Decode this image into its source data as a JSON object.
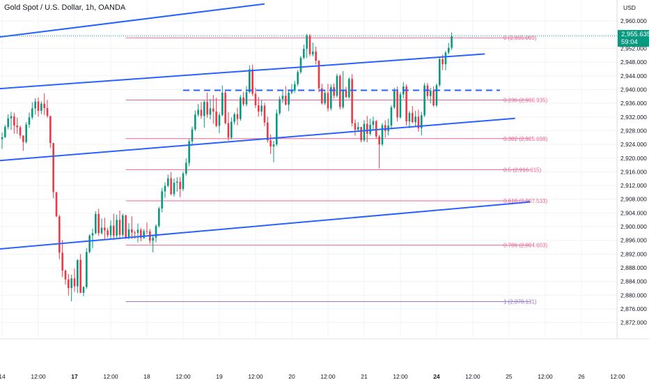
{
  "header": {
    "title": "Gold Spot / U.S. Dollar, 1h, OANDA"
  },
  "axis": {
    "currency": "USD"
  },
  "last_price": {
    "price": "2,955.635",
    "countdown": "59:04",
    "value": 2955.635,
    "color": "#089981"
  },
  "colors": {
    "up": "#089981",
    "down": "#f23645",
    "trend": "#2962ff",
    "fib": "#f06292",
    "fib_one": "#9575cd",
    "grid": "#f0f3fa"
  },
  "chart_data": {
    "type": "candlestick",
    "title": "Gold Spot / U.S. Dollar, 1h, OANDA",
    "y_axis": {
      "unit": "USD",
      "range": [
        2870,
        2964
      ],
      "ticks": [
        "2,960.000",
        "2,956.000",
        "2,952.000",
        "2,948.000",
        "2,944.000",
        "2,940.000",
        "2,936.000",
        "2,932.000",
        "2,928.000",
        "2,924.000",
        "2,920.000",
        "2,916.000",
        "2,912.000",
        "2,908.000",
        "2,904.000",
        "2,900.000",
        "2,896.000",
        "2,892.000",
        "2,888.000",
        "2,884.000",
        "2,880.000",
        "2,876.000",
        "2,872.000"
      ],
      "tick_values": [
        2960,
        2956,
        2952,
        2948,
        2944,
        2940,
        2936,
        2932,
        2928,
        2924,
        2920,
        2916,
        2912,
        2908,
        2904,
        2900,
        2896,
        2892,
        2888,
        2884,
        2880,
        2876,
        2872
      ]
    },
    "x_axis": {
      "ticks": [
        "14",
        "12:00",
        "17",
        "12:00",
        "18",
        "12:00",
        "19",
        "12:00",
        "20",
        "12:00",
        "21",
        "12:00",
        "24",
        "12:00",
        "25",
        "12:00",
        "26",
        "12:00"
      ],
      "bold": [
        false,
        false,
        true,
        false,
        false,
        false,
        false,
        false,
        false,
        false,
        false,
        false,
        true,
        false,
        false,
        false,
        false,
        false
      ],
      "tick_index": [
        0,
        12,
        24,
        36,
        48,
        60,
        72,
        84,
        96,
        108,
        120,
        132,
        144,
        156,
        168,
        180,
        192,
        204
      ]
    },
    "fib_levels": [
      {
        "label": "0 (2,955.099)",
        "value": 2955.099
      },
      {
        "label": "0.236 (2,936.935)",
        "value": 2936.935
      },
      {
        "label": "0.382 (2,925.698)",
        "value": 2925.698
      },
      {
        "label": "0.5 (2,916.615)",
        "value": 2916.615
      },
      {
        "label": "0.618 (2,907.533)",
        "value": 2907.533
      },
      {
        "label": "0.786 (2,894.603)",
        "value": 2894.603
      },
      {
        "label": "1 (2,878.131)",
        "value": 2878.131
      }
    ],
    "fib_range_index": [
      41,
      175
    ],
    "horizontal_line": {
      "value": 2939.8,
      "from_index": 60,
      "to_index": 165,
      "style": "dashed"
    },
    "trend_lines": [
      {
        "from": [
          -2,
          2955.2
        ],
        "to": [
          87,
          2965
        ]
      },
      {
        "from": [
          -2,
          2940.2
        ],
        "to": [
          160,
          2950.4
        ]
      },
      {
        "from": [
          -2,
          2919.2
        ],
        "to": [
          170,
          2931.6
        ]
      },
      {
        "from": [
          -2,
          2893.4
        ],
        "to": [
          175,
          2907.2
        ]
      }
    ],
    "candles": [
      [
        2925.5,
        2927.5,
        2922.7,
        2926.1
      ],
      [
        2926.1,
        2929.7,
        2925.9,
        2929.1
      ],
      [
        2929.1,
        2932.8,
        2928.4,
        2931.6
      ],
      [
        2931.6,
        2933.5,
        2928.2,
        2932.2
      ],
      [
        2932.2,
        2933.3,
        2927.1,
        2929.5
      ],
      [
        2929.5,
        2931.8,
        2927.1,
        2929.0
      ],
      [
        2929.0,
        2929.5,
        2925.7,
        2926.6
      ],
      [
        2926.6,
        2926.6,
        2922.1,
        2924.7
      ],
      [
        2924.7,
        2930.5,
        2924.3,
        2929.8
      ],
      [
        2929.8,
        2933.3,
        2928.8,
        2931.9
      ],
      [
        2931.9,
        2936.3,
        2931.3,
        2934.5
      ],
      [
        2934.5,
        2937.5,
        2932.7,
        2936.5
      ],
      [
        2936.5,
        2937.7,
        2932.1,
        2933.8
      ],
      [
        2933.8,
        2936.6,
        2932.8,
        2935.9
      ],
      [
        2935.9,
        2938.9,
        2932.6,
        2934.6
      ],
      [
        2934.6,
        2937.0,
        2931.8,
        2932.3
      ],
      [
        2932.3,
        2932.3,
        2922.9,
        2924.4
      ],
      [
        2924.4,
        2924.4,
        2908.3,
        2910.1
      ],
      [
        2910.1,
        2910.1,
        2902.8,
        2903.0
      ],
      [
        2903.0,
        2903.4,
        2890.5,
        2892.4
      ],
      [
        2892.4,
        2896.1,
        2885.3,
        2887.2
      ],
      [
        2887.2,
        2887.5,
        2883.1,
        2884.6
      ],
      [
        2884.6,
        2886.2,
        2879.9,
        2882.1
      ],
      [
        2882.1,
        2886.0,
        2878.2,
        2884.9
      ],
      [
        2884.9,
        2887.8,
        2881.0,
        2882.6
      ],
      [
        2882.6,
        2890.4,
        2880.6,
        2890.3
      ],
      [
        2890.3,
        2892.0,
        2880.6,
        2880.7
      ],
      [
        2880.7,
        2882.6,
        2879.7,
        2882.4
      ],
      [
        2882.4,
        2893.8,
        2881.9,
        2892.6
      ],
      [
        2892.6,
        2897.8,
        2892.2,
        2897.4
      ],
      [
        2897.4,
        2899.4,
        2893.7,
        2898.1
      ],
      [
        2898.1,
        2904.5,
        2897.7,
        2903.7
      ],
      [
        2903.7,
        2905.2,
        2897.3,
        2898.1
      ],
      [
        2898.1,
        2902.4,
        2897.7,
        2899.7
      ],
      [
        2899.7,
        2902.6,
        2896.2,
        2898.9
      ],
      [
        2898.9,
        2899.7,
        2896.8,
        2897.5
      ],
      [
        2897.5,
        2901.8,
        2896.3,
        2900.3
      ],
      [
        2900.3,
        2903.8,
        2896.1,
        2897.4
      ],
      [
        2897.4,
        2903.5,
        2896.8,
        2902.0
      ],
      [
        2902.0,
        2904.7,
        2896.7,
        2897.6
      ],
      [
        2897.6,
        2903.8,
        2897.0,
        2903.3
      ],
      [
        2903.3,
        2903.5,
        2896.4,
        2896.9
      ],
      [
        2896.9,
        2901.0,
        2896.3,
        2899.2
      ],
      [
        2899.2,
        2903.0,
        2896.4,
        2898.3
      ],
      [
        2898.3,
        2898.8,
        2896.5,
        2898.2
      ],
      [
        2898.2,
        2900.9,
        2895.4,
        2899.1
      ],
      [
        2899.1,
        2899.6,
        2895.7,
        2896.7
      ],
      [
        2896.7,
        2899.3,
        2896.4,
        2898.7
      ],
      [
        2898.7,
        2901.2,
        2897.8,
        2898.6
      ],
      [
        2898.6,
        2899.3,
        2895.0,
        2895.9
      ],
      [
        2895.9,
        2897.4,
        2892.5,
        2896.8
      ],
      [
        2896.8,
        2900.7,
        2895.4,
        2900.2
      ],
      [
        2900.2,
        2905.8,
        2899.7,
        2905.3
      ],
      [
        2905.3,
        2911.3,
        2904.2,
        2910.3
      ],
      [
        2910.3,
        2912.9,
        2908.4,
        2911.9
      ],
      [
        2911.9,
        2915.2,
        2911.5,
        2914.1
      ],
      [
        2914.1,
        2915.9,
        2909.1,
        2909.5
      ],
      [
        2909.5,
        2914.1,
        2908.8,
        2912.8
      ],
      [
        2912.8,
        2914.4,
        2910.2,
        2913.1
      ],
      [
        2913.1,
        2914.5,
        2908.6,
        2911.0
      ],
      [
        2911.0,
        2916.1,
        2910.4,
        2915.5
      ],
      [
        2915.5,
        2919.9,
        2914.9,
        2918.6
      ],
      [
        2918.6,
        2925.6,
        2917.6,
        2924.9
      ],
      [
        2924.9,
        2929.2,
        2923.6,
        2928.4
      ],
      [
        2928.4,
        2933.9,
        2927.9,
        2932.7
      ],
      [
        2932.7,
        2935.8,
        2932.1,
        2934.1
      ],
      [
        2934.1,
        2936.4,
        2931.5,
        2932.3
      ],
      [
        2932.3,
        2936.8,
        2928.9,
        2936.4
      ],
      [
        2936.4,
        2939.1,
        2931.8,
        2932.7
      ],
      [
        2932.7,
        2937.3,
        2931.3,
        2934.5
      ],
      [
        2934.5,
        2938.4,
        2930.0,
        2933.6
      ],
      [
        2933.6,
        2937.6,
        2929.1,
        2929.4
      ],
      [
        2929.4,
        2933.3,
        2927.3,
        2932.6
      ],
      [
        2932.6,
        2941.2,
        2932.2,
        2939.1
      ],
      [
        2939.1,
        2939.6,
        2929.8,
        2930.2
      ],
      [
        2930.2,
        2933.4,
        2925.1,
        2926.0
      ],
      [
        2926.0,
        2931.9,
        2925.5,
        2930.6
      ],
      [
        2930.6,
        2933.3,
        2929.8,
        2932.8
      ],
      [
        2932.8,
        2934.7,
        2929.6,
        2931.4
      ],
      [
        2931.4,
        2938.4,
        2930.9,
        2937.7
      ],
      [
        2937.7,
        2939.3,
        2935.2,
        2935.7
      ],
      [
        2935.7,
        2941.0,
        2935.1,
        2939.3
      ],
      [
        2939.3,
        2947.1,
        2938.8,
        2945.9
      ],
      [
        2945.9,
        2947.3,
        2938.1,
        2938.8
      ],
      [
        2938.8,
        2940.5,
        2934.6,
        2935.4
      ],
      [
        2935.4,
        2937.9,
        2932.1,
        2933.6
      ],
      [
        2933.6,
        2936.9,
        2932.3,
        2935.3
      ],
      [
        2935.3,
        2936.1,
        2929.3,
        2930.4
      ],
      [
        2930.4,
        2932.1,
        2924.5,
        2925.2
      ],
      [
        2925.2,
        2926.9,
        2921.2,
        2923.4
      ],
      [
        2923.4,
        2925.0,
        2918.8,
        2924.0
      ],
      [
        2924.0,
        2934.2,
        2923.5,
        2933.1
      ],
      [
        2933.1,
        2938.0,
        2932.6,
        2937.2
      ],
      [
        2937.2,
        2939.6,
        2936.1,
        2938.2
      ],
      [
        2938.2,
        2941.0,
        2935.4,
        2935.6
      ],
      [
        2935.6,
        2939.8,
        2933.7,
        2939.1
      ],
      [
        2939.1,
        2941.6,
        2938.6,
        2939.7
      ],
      [
        2939.7,
        2942.5,
        2939.1,
        2941.6
      ],
      [
        2941.6,
        2945.7,
        2941.0,
        2945.1
      ],
      [
        2945.1,
        2949.8,
        2944.6,
        2949.3
      ],
      [
        2949.3,
        2953.1,
        2948.8,
        2951.9
      ],
      [
        2951.9,
        2956.3,
        2949.2,
        2955.8
      ],
      [
        2955.8,
        2956.2,
        2949.7,
        2950.3
      ],
      [
        2950.3,
        2953.7,
        2949.7,
        2951.1
      ],
      [
        2951.1,
        2952.5,
        2947.3,
        2948.4
      ],
      [
        2948.4,
        2948.6,
        2939.3,
        2940.4
      ],
      [
        2940.4,
        2941.7,
        2935.6,
        2936.0
      ],
      [
        2936.0,
        2939.9,
        2935.5,
        2939.0
      ],
      [
        2939.0,
        2941.7,
        2933.6,
        2934.5
      ],
      [
        2934.5,
        2941.5,
        2933.9,
        2940.7
      ],
      [
        2940.7,
        2941.8,
        2937.4,
        2938.2
      ],
      [
        2938.2,
        2944.6,
        2937.7,
        2944.0
      ],
      [
        2944.0,
        2944.4,
        2934.2,
        2934.9
      ],
      [
        2934.9,
        2945.4,
        2934.4,
        2939.9
      ],
      [
        2939.9,
        2940.8,
        2937.5,
        2937.8
      ],
      [
        2937.8,
        2943.6,
        2937.3,
        2943.1
      ],
      [
        2943.1,
        2944.5,
        2929.3,
        2930.2
      ],
      [
        2930.2,
        2931.3,
        2926.5,
        2928.3
      ],
      [
        2928.3,
        2930.5,
        2927.8,
        2929.1
      ],
      [
        2929.1,
        2929.1,
        2924.6,
        2925.2
      ],
      [
        2925.2,
        2931.1,
        2924.7,
        2930.0
      ],
      [
        2930.0,
        2932.3,
        2924.6,
        2927.1
      ],
      [
        2927.1,
        2931.5,
        2926.6,
        2929.7
      ],
      [
        2929.7,
        2932.1,
        2928.4,
        2930.8
      ],
      [
        2930.8,
        2931.1,
        2925.6,
        2926.3
      ],
      [
        2926.3,
        2926.8,
        2917.0,
        2924.0
      ],
      [
        2924.0,
        2930.2,
        2923.5,
        2929.6
      ],
      [
        2929.6,
        2931.0,
        2926.0,
        2927.9
      ],
      [
        2927.9,
        2931.5,
        2926.6,
        2929.5
      ],
      [
        2929.5,
        2935.4,
        2928.6,
        2934.8
      ],
      [
        2934.8,
        2940.5,
        2934.3,
        2939.5
      ],
      [
        2939.5,
        2940.9,
        2930.7,
        2931.9
      ],
      [
        2931.9,
        2939.3,
        2931.5,
        2938.6
      ],
      [
        2938.6,
        2942.2,
        2937.4,
        2940.9
      ],
      [
        2940.9,
        2941.5,
        2929.5,
        2930.7
      ],
      [
        2930.7,
        2933.7,
        2928.7,
        2933.2
      ],
      [
        2933.2,
        2935.2,
        2930.2,
        2930.5
      ],
      [
        2930.5,
        2933.8,
        2929.3,
        2932.1
      ],
      [
        2932.1,
        2934.1,
        2927.7,
        2928.7
      ],
      [
        2928.7,
        2933.5,
        2926.6,
        2932.5
      ],
      [
        2932.5,
        2941.9,
        2932.0,
        2941.2
      ],
      [
        2941.2,
        2941.9,
        2937.2,
        2938.1
      ],
      [
        2938.1,
        2940.5,
        2936.0,
        2939.7
      ],
      [
        2939.7,
        2940.9,
        2935.0,
        2935.4
      ],
      [
        2935.4,
        2941.8,
        2934.9,
        2941.3
      ],
      [
        2941.3,
        2949.4,
        2940.8,
        2948.9
      ],
      [
        2948.9,
        2950.2,
        2945.7,
        2947.4
      ],
      [
        2947.4,
        2951.3,
        2945.6,
        2950.8
      ],
      [
        2950.8,
        2953.6,
        2950.3,
        2952.2
      ],
      [
        2952.2,
        2956.7,
        2951.6,
        2955.6
      ]
    ]
  }
}
